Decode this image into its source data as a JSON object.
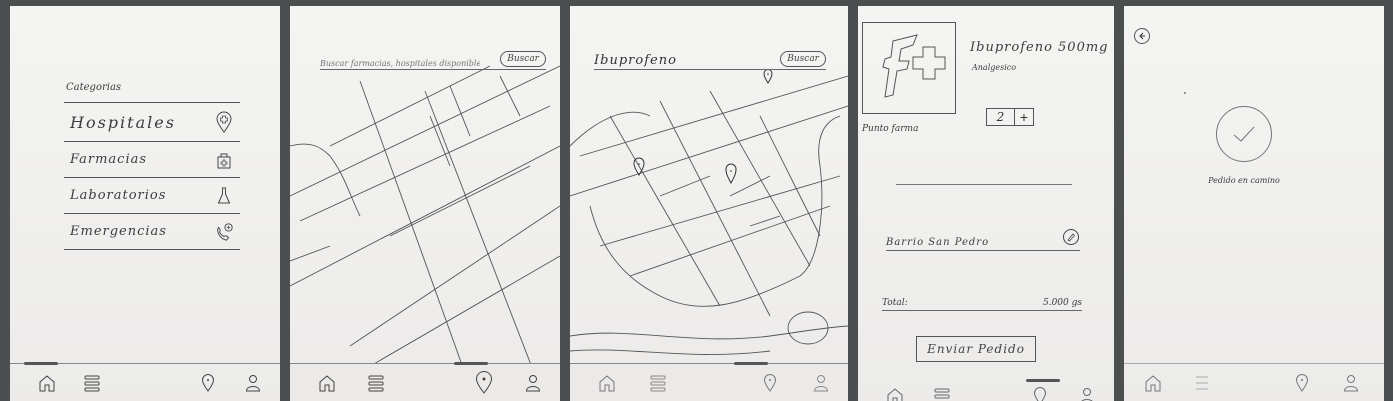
{
  "screen1": {
    "categories_title": "Categorias",
    "categories": [
      {
        "label": "Hospitales",
        "icon": "hospital-pin-icon"
      },
      {
        "label": "Farmacias",
        "icon": "medicine-bag-icon"
      },
      {
        "label": "Laboratorios",
        "icon": "flask-icon"
      },
      {
        "label": "Emergencias",
        "icon": "emergency-phone-icon"
      }
    ]
  },
  "screen2": {
    "search_placeholder": "Buscar farmacias, hospitales disponibles",
    "search_button": "Buscar"
  },
  "screen3": {
    "search_value": "Ibuprofeno",
    "search_button": "Buscar"
  },
  "screen4": {
    "pharmacy_name": "Punto farma",
    "product_name": "Ibuprofeno 500mg",
    "product_category": "Analgesico",
    "quantity": "2",
    "quantity_plus": "+",
    "address": "Barrio San Pedro",
    "total_label": "Total:",
    "total_value": "5.000 gs",
    "send_button": "Enviar Pedido"
  },
  "screen5": {
    "status_text": "Pedido en camino"
  },
  "nav_icons": [
    "home-icon",
    "menu-icon",
    "location-pin-icon",
    "profile-icon"
  ],
  "colors": {
    "paper": "#f1f0ee",
    "ink": "#3c3c3c",
    "background": "#4b4f4f"
  }
}
